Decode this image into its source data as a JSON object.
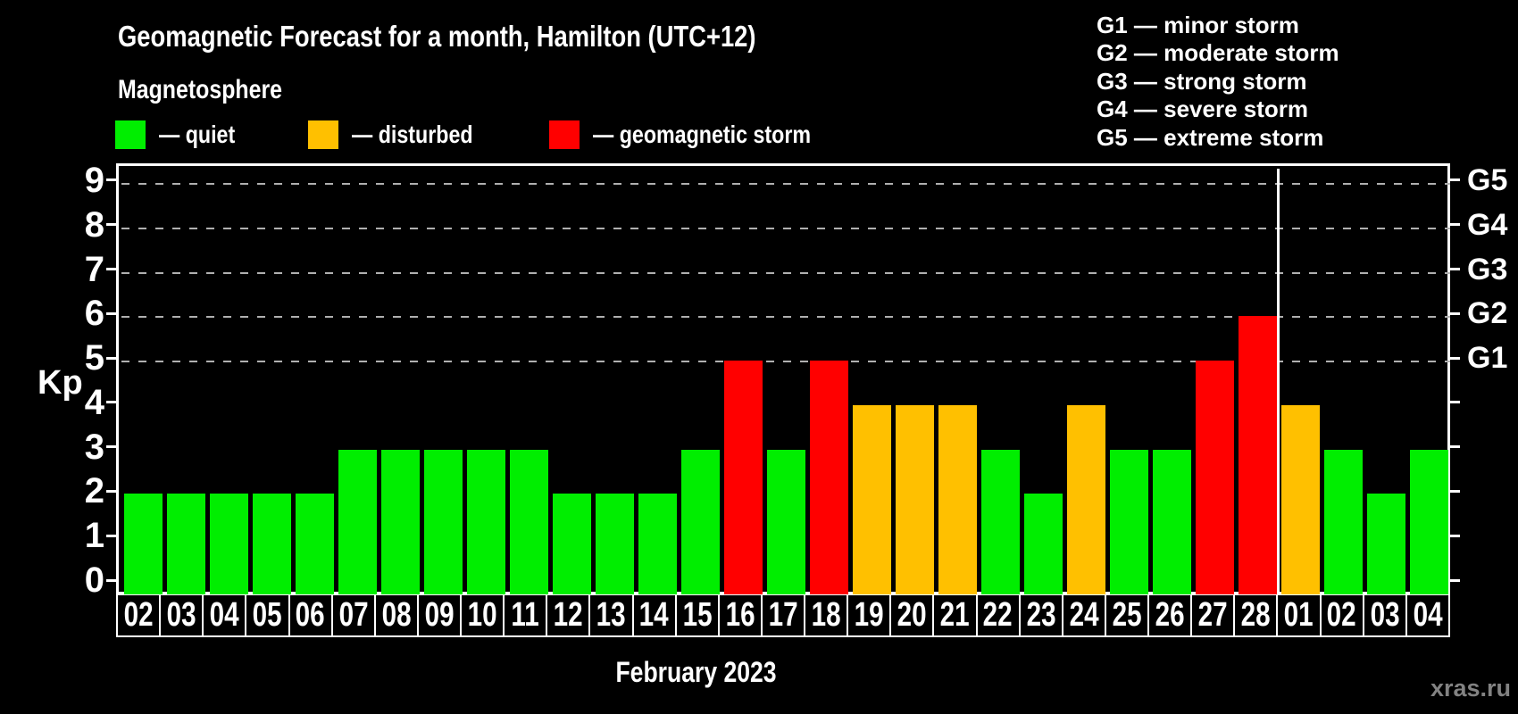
{
  "title": "Geomagnetic Forecast for a month, Hamilton (UTC+12)",
  "subtitle": "Magnetosphere",
  "legend_items": [
    {
      "name": "quiet",
      "label": "— quiet",
      "color": "#00ee00"
    },
    {
      "name": "disturbed",
      "label": "— disturbed",
      "color": "#ffc000"
    },
    {
      "name": "storm",
      "label": "— geomagnetic storm",
      "color": "#ff0000"
    }
  ],
  "g_scale_legend": [
    {
      "code": "G1",
      "label": "G1 — minor storm"
    },
    {
      "code": "G2",
      "label": "G2 — moderate storm"
    },
    {
      "code": "G3",
      "label": "G3 — strong storm"
    },
    {
      "code": "G4",
      "label": "G4 — severe storm"
    },
    {
      "code": "G5",
      "label": "G5 — extreme storm"
    }
  ],
  "axes": {
    "y_label": "Kp",
    "y_ticks": [
      0,
      1,
      2,
      3,
      4,
      5,
      6,
      7,
      8,
      9
    ],
    "right_labels": [
      {
        "text": "G1",
        "kp": 5
      },
      {
        "text": "G2",
        "kp": 6
      },
      {
        "text": "G3",
        "kp": 7
      },
      {
        "text": "G4",
        "kp": 8
      },
      {
        "text": "G5",
        "kp": 9
      }
    ],
    "x_label": "February 2023"
  },
  "watermark": "xras.ru",
  "colors": {
    "quiet": "#00ee00",
    "disturbed": "#ffc000",
    "storm": "#ff0000",
    "grid": "#b0b0b0",
    "frame": "#ffffff",
    "watermark": "#828282"
  },
  "chart_data": {
    "type": "bar",
    "title": "Geomagnetic Forecast for a month, Hamilton (UTC+12)",
    "subtitle": "Magnetosphere",
    "ylabel": "Kp",
    "xlabel": "February 2023",
    "ylim": [
      0,
      9
    ],
    "grid": "dashed horizontal lines at Kp 5-9 only",
    "gridlines_at": [
      5,
      6,
      7,
      8,
      9
    ],
    "right_axis_labels": {
      "G1": 5,
      "G2": 6,
      "G3": 7,
      "G4": 8,
      "G5": 9
    },
    "month_split_after_index": 26,
    "categories": [
      "02",
      "03",
      "04",
      "05",
      "06",
      "07",
      "08",
      "09",
      "10",
      "11",
      "12",
      "13",
      "14",
      "15",
      "16",
      "17",
      "18",
      "19",
      "20",
      "21",
      "22",
      "23",
      "24",
      "25",
      "26",
      "27",
      "28",
      "01",
      "02",
      "03",
      "04"
    ],
    "values": [
      2,
      2,
      2,
      2,
      2,
      3,
      3,
      3,
      3,
      3,
      2,
      2,
      2,
      3,
      5,
      3,
      5,
      4,
      4,
      4,
      3,
      2,
      4,
      3,
      3,
      5,
      6,
      4,
      3,
      2,
      3
    ],
    "statuses": [
      "quiet",
      "quiet",
      "quiet",
      "quiet",
      "quiet",
      "quiet",
      "quiet",
      "quiet",
      "quiet",
      "quiet",
      "quiet",
      "quiet",
      "quiet",
      "quiet",
      "storm",
      "quiet",
      "storm",
      "disturbed",
      "disturbed",
      "disturbed",
      "quiet",
      "quiet",
      "disturbed",
      "quiet",
      "quiet",
      "storm",
      "storm",
      "disturbed",
      "quiet",
      "quiet",
      "quiet"
    ],
    "legend_position": "top-left and top-right"
  }
}
